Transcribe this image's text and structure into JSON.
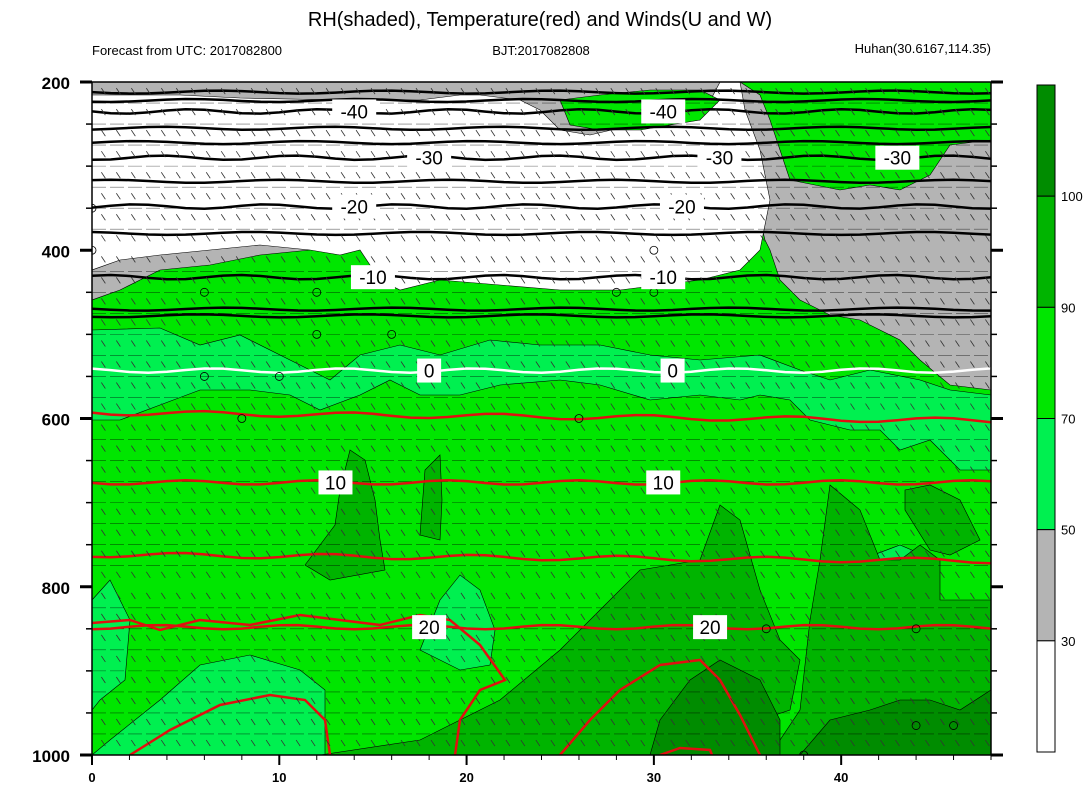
{
  "chart_data": {
    "type": "contour",
    "title": "RH(shaded), Temperature(red) and Winds(U and W)",
    "subtitle_left": "Forecast from UTC: 2017082800",
    "subtitle_center": "BJT:2017082808",
    "subtitle_right": "Huhan(30.6167,114.35)",
    "x_ticks": [
      "0",
      "10",
      "20",
      "30",
      "40"
    ],
    "x_tick_values": [
      0,
      10,
      20,
      30,
      40
    ],
    "xlim": [
      0,
      48
    ],
    "y_ticks": [
      "200",
      "400",
      "600",
      "800",
      "1000"
    ],
    "y_tick_values": [
      200,
      400,
      600,
      800,
      1000
    ],
    "ylim": [
      1000,
      200
    ],
    "colorbar": {
      "labels": [
        "30",
        "50",
        "70",
        "90",
        "100"
      ],
      "bins": [
        {
          "color": "#ffffff",
          "range": [
            null,
            30
          ]
        },
        {
          "color": "#b4b4b4",
          "range": [
            30,
            50
          ]
        },
        {
          "color": "#00f050",
          "range": [
            50,
            70
          ]
        },
        {
          "color": "#00e600",
          "range": [
            70,
            90
          ]
        },
        {
          "color": "#00b400",
          "range": [
            90,
            100
          ]
        },
        {
          "color": "#008c00",
          "range": [
            100,
            null
          ]
        }
      ]
    },
    "temperature_contours": [
      {
        "label": "-40",
        "color": "#000000",
        "pressure": 235,
        "label_x": [
          14,
          30.5
        ]
      },
      {
        "label": "-30",
        "color": "#000000",
        "pressure": 290,
        "label_x": [
          18,
          33.5,
          43
        ]
      },
      {
        "label": "-20",
        "color": "#000000",
        "pressure": 348,
        "label_x": [
          14,
          31.5
        ]
      },
      {
        "label": "-10",
        "color": "#000000",
        "pressure": 432,
        "label_x": [
          15,
          30.5
        ]
      },
      {
        "label": "0",
        "color": "#ffffff",
        "pressure": 543,
        "label_x": [
          18,
          31
        ]
      },
      {
        "label": "10",
        "color": "#e01010",
        "pressure": 676,
        "label_x": [
          13,
          30.5
        ]
      },
      {
        "label": "20",
        "color": "#e01010",
        "pressure": 848,
        "label_x": [
          18,
          33
        ]
      }
    ],
    "grid": true
  },
  "colors": {
    "temperature_line": "#e01010",
    "zero_isotherm": "#ffffff",
    "cold_isotherm": "#000000"
  }
}
